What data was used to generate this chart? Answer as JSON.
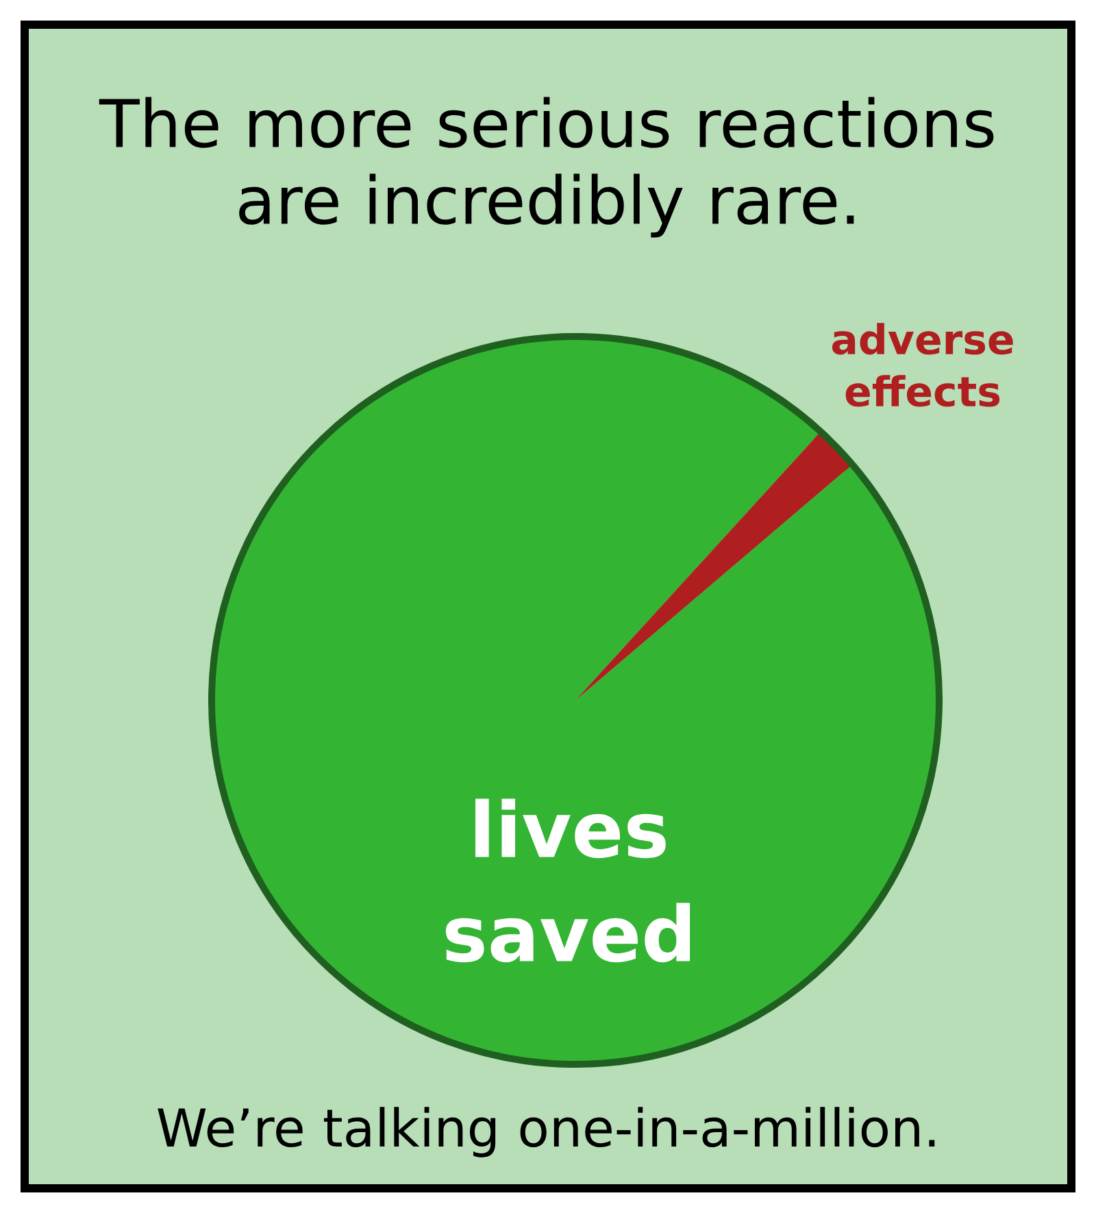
{
  "chart_data": {
    "type": "pie",
    "title": "The more serious reactions are incredibly rare.",
    "categories": [
      "lives saved",
      "adverse effects"
    ],
    "values": [
      98,
      2
    ],
    "colors": [
      "#33b533",
      "#b01f1f"
    ],
    "annotations": [
      "We’re talking one-in-a-million."
    ]
  }
}
